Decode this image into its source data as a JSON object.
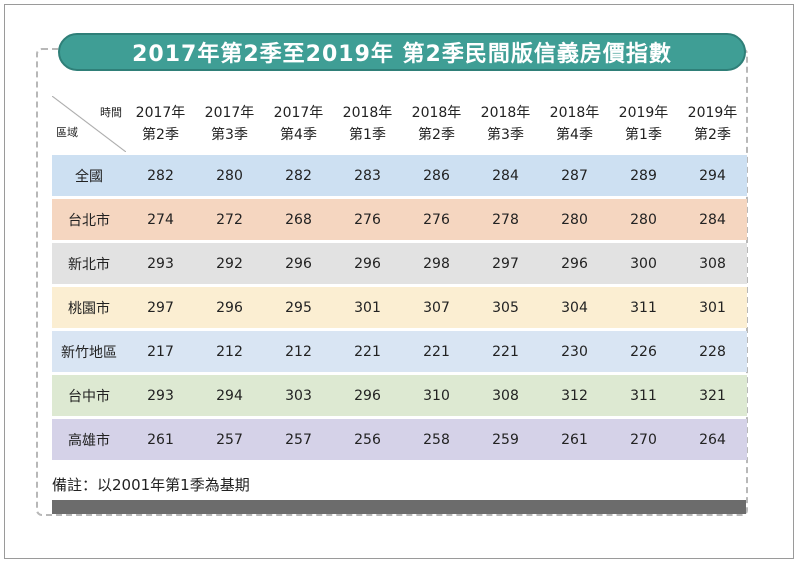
{
  "title": "2017年第2季至2019年 第2季民間版信義房價指數",
  "table": {
    "corner_top": "時間",
    "corner_bottom": "區域",
    "columns": [
      [
        "2017年",
        "第2季"
      ],
      [
        "2017年",
        "第3季"
      ],
      [
        "2017年",
        "第4季"
      ],
      [
        "2018年",
        "第1季"
      ],
      [
        "2018年",
        "第2季"
      ],
      [
        "2018年",
        "第3季"
      ],
      [
        "2018年",
        "第4季"
      ],
      [
        "2019年",
        "第1季"
      ],
      [
        "2019年",
        "第2季"
      ]
    ],
    "rows": [
      {
        "region": "全國",
        "color": "#cde0f2",
        "values": [
          "282",
          "280",
          "282",
          "283",
          "286",
          "284",
          "287",
          "289",
          "294"
        ]
      },
      {
        "region": "台北市",
        "color": "#f5d6c0",
        "values": [
          "274",
          "272",
          "268",
          "276",
          "276",
          "278",
          "280",
          "280",
          "284"
        ]
      },
      {
        "region": "新北市",
        "color": "#e2e2e2",
        "values": [
          "293",
          "292",
          "296",
          "296",
          "298",
          "297",
          "296",
          "300",
          "308"
        ]
      },
      {
        "region": "桃園市",
        "color": "#fbeed2",
        "values": [
          "297",
          "296",
          "295",
          "301",
          "307",
          "305",
          "304",
          "311",
          "301"
        ]
      },
      {
        "region": "新竹地區",
        "color": "#d9e5f3",
        "values": [
          "217",
          "212",
          "212",
          "221",
          "221",
          "221",
          "230",
          "226",
          "228"
        ]
      },
      {
        "region": "台中市",
        "color": "#dde9d2",
        "values": [
          "293",
          "294",
          "303",
          "296",
          "310",
          "308",
          "312",
          "311",
          "321"
        ]
      },
      {
        "region": "高雄市",
        "color": "#d5d2e8",
        "values": [
          "261",
          "257",
          "257",
          "256",
          "258",
          "259",
          "261",
          "270",
          "264"
        ]
      }
    ]
  },
  "note": "備註：以2001年第1季為基期"
}
